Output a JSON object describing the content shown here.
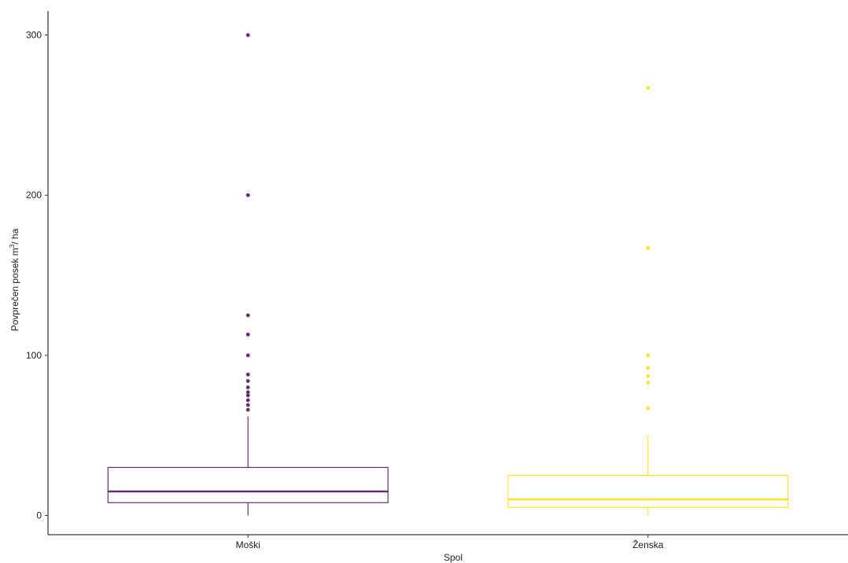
{
  "chart_data": {
    "type": "box",
    "xlabel": "Spol",
    "ylabel": "Povprečen posek m",
    "ylabel_sup": "3",
    "ylabel_tail": "/ ha",
    "ylim": [
      -12,
      315
    ],
    "yticks": [
      0,
      100,
      200,
      300
    ],
    "grid": false,
    "categories": [
      "Moški",
      "Ženska"
    ],
    "colors": {
      "Moški": "#6a2c70",
      "Ženska": "#fde725"
    },
    "boxes": [
      {
        "category": "Moški",
        "min": 0,
        "q1": 8,
        "median": 15,
        "q3": 30,
        "whisker_high": 62,
        "outliers": [
          66,
          69,
          72,
          75,
          77,
          80,
          84,
          88,
          100,
          113,
          125,
          200,
          300
        ]
      },
      {
        "category": "Ženska",
        "min": 0,
        "q1": 5,
        "median": 10,
        "q3": 25,
        "whisker_high": 50,
        "outliers": [
          67,
          83,
          87,
          92,
          100,
          167,
          267
        ]
      }
    ]
  }
}
